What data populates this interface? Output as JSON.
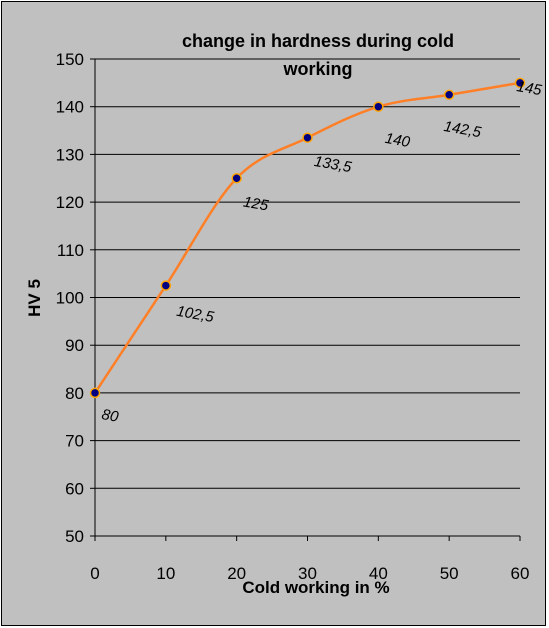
{
  "chart_data": {
    "type": "line",
    "title_lines": [
      "change in hardness during cold",
      "working"
    ],
    "xlabel": "Cold working in %",
    "ylabel": "HV 5",
    "xlim": [
      0,
      60
    ],
    "ylim": [
      50,
      150
    ],
    "x_ticks": [
      "0",
      "10",
      "20",
      "30",
      "40",
      "50",
      "60"
    ],
    "y_ticks": [
      "50",
      "60",
      "70",
      "80",
      "90",
      "100",
      "110",
      "120",
      "130",
      "140",
      "150"
    ],
    "grid": "horizontal",
    "series": [
      {
        "x": [
          0,
          10,
          20,
          30,
          40,
          50,
          60
        ],
        "values": [
          80,
          102.5,
          125,
          133.5,
          140,
          142.5,
          145
        ],
        "labels": [
          "80",
          "102,5",
          "125",
          "133,5",
          "140",
          "142,5",
          "145"
        ],
        "line_color": "#ff7f27",
        "marker_color": "#000080",
        "marker_edge": "#ffa500"
      }
    ],
    "plot_background": "#c0c0c0",
    "grid_color": "#000000"
  }
}
